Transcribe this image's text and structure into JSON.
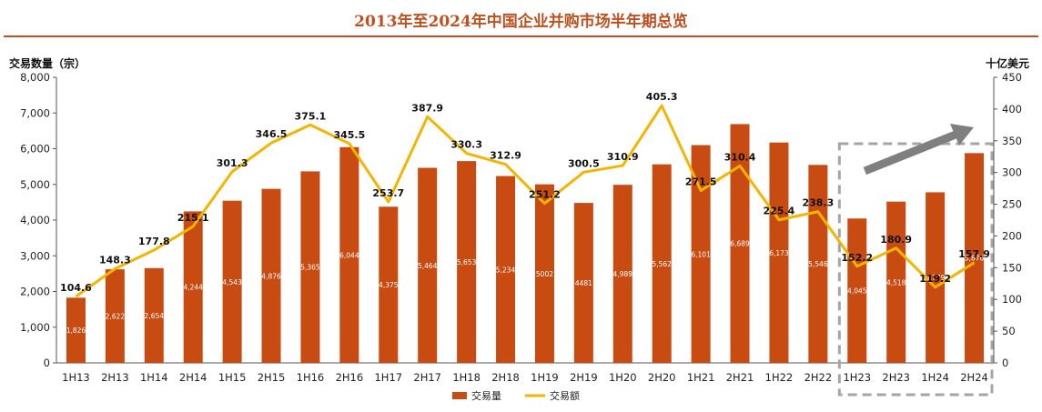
{
  "title": "2013年至2024年中国企业并购市场半年期总览",
  "chart_data": {
    "type": "bar",
    "title": "2013年至2024年中国企业并购市场半年期总览",
    "categories": [
      "1H13",
      "2H13",
      "1H14",
      "2H14",
      "1H15",
      "2H15",
      "1H16",
      "2H16",
      "1H17",
      "2H17",
      "1H18",
      "2H18",
      "1H19",
      "2H19",
      "1H20",
      "2H20",
      "1H21",
      "2H21",
      "1H22",
      "2H22",
      "1H23",
      "2H23",
      "1H24",
      "2H24"
    ],
    "ylabel_left": "交易数量（宗）",
    "ylabel_right": "十亿美元",
    "ylim_left": [
      0,
      8000
    ],
    "ylim_right": [
      0,
      450
    ],
    "yticks_left": [
      "0",
      "1,000",
      "2,000",
      "3,000",
      "4,000",
      "5,000",
      "6,000",
      "7,000",
      "8,000"
    ],
    "yticks_right": [
      "0",
      "50",
      "100",
      "150",
      "200",
      "250",
      "300",
      "350",
      "400",
      "450"
    ],
    "legend_position": "bottom-center",
    "grid": false,
    "series": [
      {
        "name": "交易量",
        "type": "bar",
        "axis": "left",
        "color": "#c84b11",
        "values": [
          1826,
          2622,
          2654,
          4244,
          4543,
          4876,
          5365,
          6044,
          4375,
          5464,
          5653,
          5234,
          5002,
          4481,
          4989,
          5562,
          6101,
          6689,
          6173,
          5546,
          4045,
          4518,
          4779,
          5876
        ],
        "labels": [
          "1,826",
          "2,622",
          "2,654",
          "4,244",
          "4,543",
          "4,876",
          "5,365",
          "6,044",
          "4,375",
          "5,464",
          "5,653",
          "5,234",
          "5002",
          "4481",
          "4,989",
          "5,562",
          "6,101",
          "6,689",
          "6,173",
          "5,546",
          "4,045",
          "4,518",
          "4,779",
          "5,876"
        ]
      },
      {
        "name": "交易额",
        "type": "line",
        "axis": "right",
        "color": "#f5b400",
        "values": [
          104.6,
          148.3,
          177.8,
          215.1,
          301.3,
          346.5,
          375.1,
          345.5,
          253.7,
          387.9,
          330.3,
          312.9,
          251.2,
          300.5,
          310.9,
          405.3,
          271.5,
          310.4,
          225.4,
          238.3,
          152.2,
          180.9,
          119.2,
          157.9
        ],
        "labels": [
          "104.6",
          "148.3",
          "177.8",
          "215.1",
          "301.3",
          "346.5",
          "375.1",
          "345.5",
          "253.7",
          "387.9",
          "330.3",
          "312.9",
          "251.2",
          "300.5",
          "310.9",
          "405.3",
          "271.5",
          "310.4",
          "225.4",
          "238.3",
          "152.2",
          "180.9",
          "119.2",
          "157.9"
        ]
      }
    ],
    "highlight": {
      "categories": [
        "1H23",
        "2H23",
        "1H24",
        "2H24"
      ],
      "style": "dashed-box-with-arrow",
      "box_color": "#a6a6a6",
      "arrow_color": "#7f7f7f"
    }
  }
}
